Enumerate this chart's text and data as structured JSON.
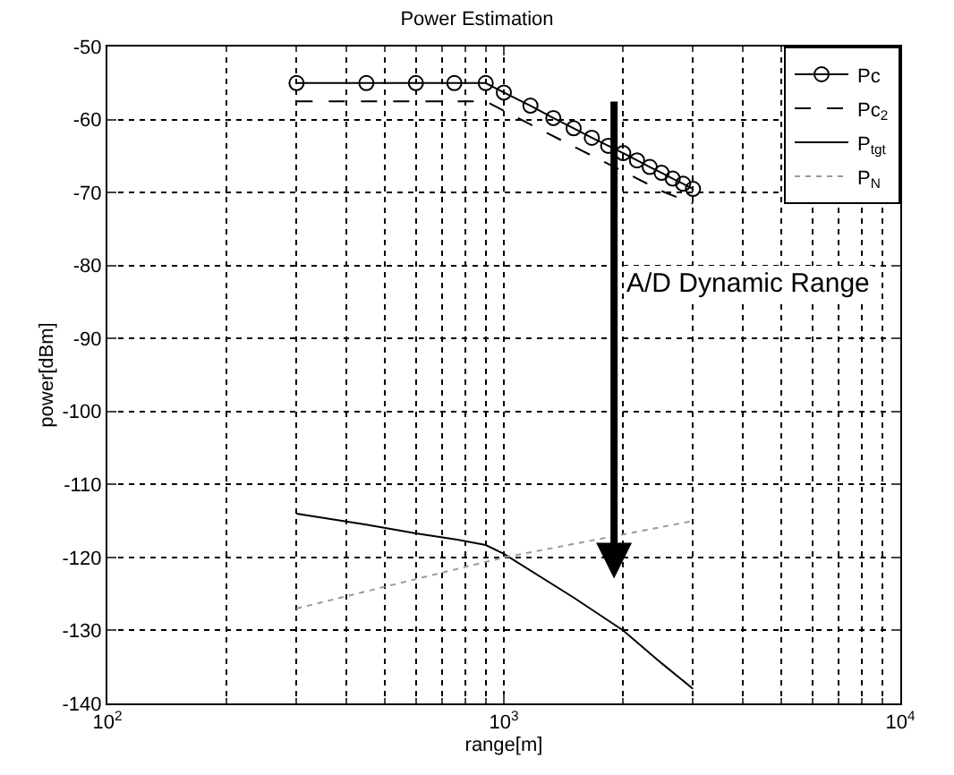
{
  "chart_data": {
    "type": "line",
    "title": "Power Estimation",
    "xlabel": "range[m]",
    "ylabel": "power[dBm]",
    "log": "x",
    "xlim": [
      100,
      10000
    ],
    "xticks": [
      {
        "value": 100,
        "label": "10$^{2}$"
      },
      {
        "value": 1000,
        "label": "10$^{3}$"
      },
      {
        "value": 10000,
        "label": "10$^{4}$"
      }
    ],
    "ylim": [
      -140,
      -50
    ],
    "yticks": [
      -140,
      -130,
      -120,
      -110,
      -100,
      -90,
      -80,
      -70,
      -60,
      -50
    ],
    "grid": true,
    "legend": "top right",
    "series": [
      {
        "name": "Pc",
        "color": "#000000",
        "marker": "circle",
        "line_style": "solid",
        "x": [
          300,
          450,
          600,
          750,
          900,
          1000,
          1167,
          1333,
          1500,
          1667,
          1833,
          2000,
          2167,
          2333,
          2500,
          2667,
          2833,
          3000
        ],
        "values": [
          -55,
          -55,
          -55,
          -55,
          -55,
          -56.3,
          -58.1,
          -59.8,
          -61.2,
          -62.5,
          -63.6,
          -64.6,
          -65.6,
          -66.5,
          -67.3,
          -68.1,
          -68.8,
          -69.5
        ]
      },
      {
        "name": "Pc$_{2}$",
        "color": "#000000",
        "marker": "none",
        "line_style": "dashed",
        "x": [
          300,
          450,
          600,
          750,
          900,
          1000,
          1500,
          2000,
          2500,
          3000
        ],
        "values": [
          -57.5,
          -57.5,
          -57.5,
          -57.5,
          -57.5,
          -58.8,
          -63.7,
          -67.1,
          -69.8,
          -71.5
        ]
      },
      {
        "name": "P$_{tgt}$",
        "color": "#000000",
        "marker": "none",
        "line_style": "solid",
        "x": [
          300,
          450,
          600,
          750,
          900,
          1000,
          1500,
          2000,
          2500,
          3000
        ],
        "values": [
          -114,
          -115.5,
          -116.7,
          -117.5,
          -118.3,
          -119.5,
          -125.5,
          -130,
          -134.5,
          -138
        ]
      },
      {
        "name": "P$_{N}$",
        "color": "#999999",
        "marker": "none",
        "line_style": "dotted",
        "x": [
          300,
          1000,
          3000
        ],
        "values": [
          -127,
          -120,
          -115
        ]
      }
    ],
    "annotations": [
      "A/D Dynamic Range"
    ]
  }
}
